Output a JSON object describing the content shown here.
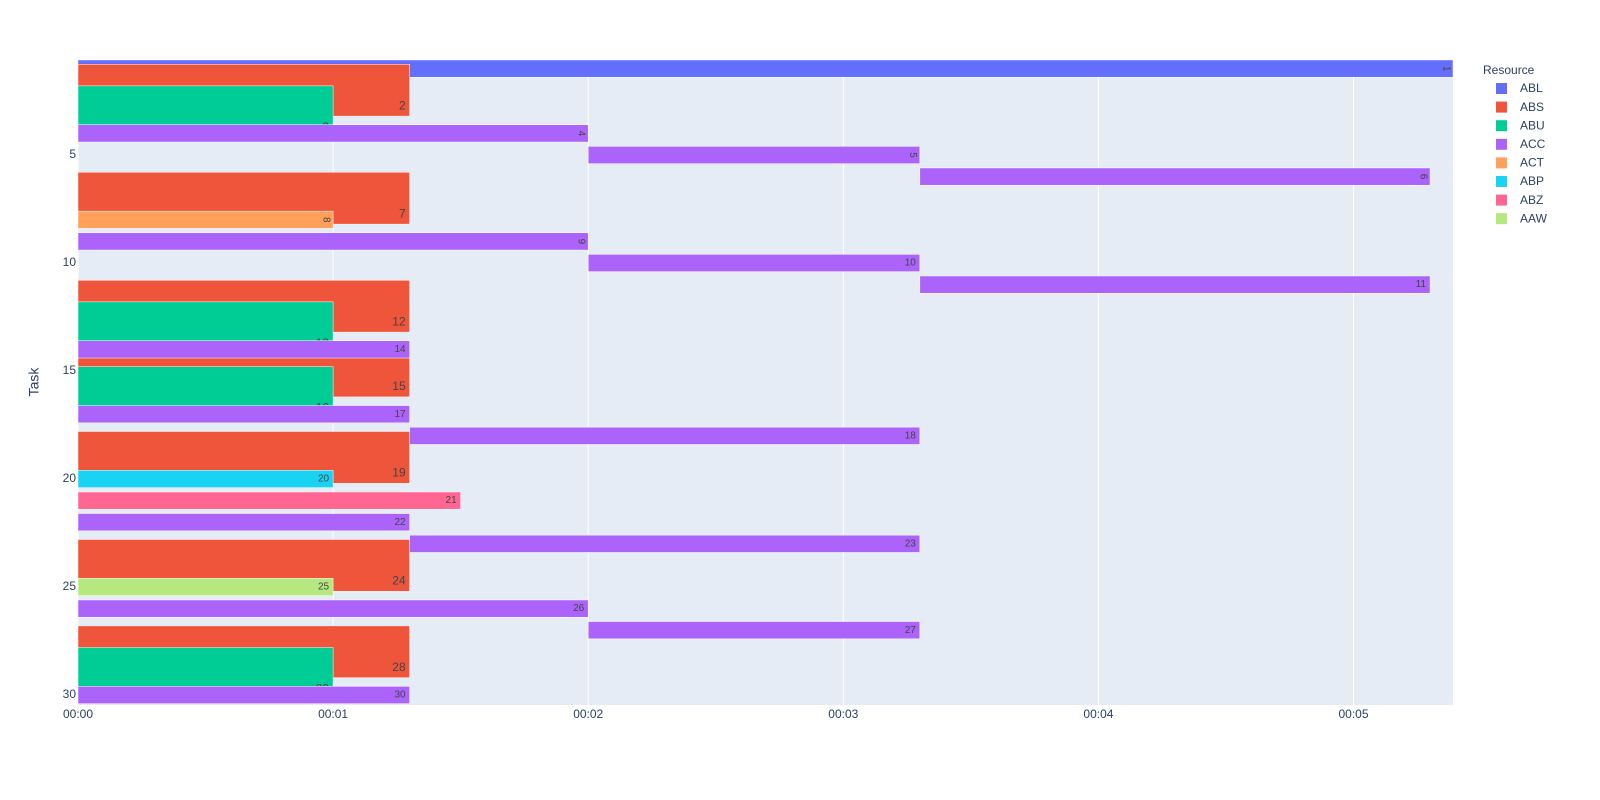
{
  "chart_data": {
    "type": "timeline",
    "y_title": "Task",
    "legend_title": "Resource",
    "xlim": [
      0,
      5.39
    ],
    "ylim": [
      0.5,
      30.5
    ],
    "y_reversed": true,
    "xticks": [
      {
        "value": 0,
        "label": "00:00"
      },
      {
        "value": 1,
        "label": "00:01"
      },
      {
        "value": 2,
        "label": "00:02"
      },
      {
        "value": 3,
        "label": "00:03"
      },
      {
        "value": 4,
        "label": "00:04"
      },
      {
        "value": 5,
        "label": "00:05"
      }
    ],
    "yticks": [
      5,
      10,
      15,
      20,
      25,
      30
    ],
    "grid": true,
    "series": [
      {
        "name": "ABL",
        "color": "#636efa",
        "tasks": [
          1
        ],
        "start": [
          0
        ],
        "end": [
          5.39
        ]
      },
      {
        "name": "ABS",
        "color": "#ef553b",
        "tasks": [
          2,
          7,
          12,
          15,
          19,
          24,
          28
        ],
        "start": [
          0,
          0,
          0,
          0,
          0,
          0,
          0
        ],
        "end": [
          1.3,
          1.3,
          1.3,
          1.3,
          1.3,
          1.3,
          1.3
        ]
      },
      {
        "name": "ABU",
        "color": "#00cc96",
        "tasks": [
          3,
          13,
          16,
          29
        ],
        "start": [
          0,
          0,
          0,
          0
        ],
        "end": [
          1,
          1,
          1,
          1
        ]
      },
      {
        "name": "ACC",
        "color": "#ab63fa",
        "tasks": [
          4,
          5,
          6,
          9,
          10,
          11,
          14,
          17,
          18,
          22,
          23,
          26,
          27,
          30
        ],
        "start": [
          0,
          2,
          3.3,
          0,
          2,
          3.3,
          0,
          0,
          1.3,
          0,
          1.3,
          0,
          2,
          0
        ],
        "end": [
          2,
          3.3,
          5.3,
          2,
          3.3,
          5.3,
          1.3,
          1.3,
          3.3,
          1.3,
          3.3,
          2,
          3.3,
          1.3
        ]
      },
      {
        "name": "ACT",
        "color": "#ffa15a",
        "tasks": [
          8
        ],
        "start": [
          0
        ],
        "end": [
          1
        ]
      },
      {
        "name": "ABP",
        "color": "#19d3f3",
        "tasks": [
          20
        ],
        "start": [
          0
        ],
        "end": [
          1
        ]
      },
      {
        "name": "ABZ",
        "color": "#ff6692",
        "tasks": [
          21
        ],
        "start": [
          0
        ],
        "end": [
          1.5
        ]
      },
      {
        "name": "AAW",
        "color": "#b6e880",
        "tasks": [
          25
        ],
        "start": [
          0
        ],
        "end": [
          1
        ]
      }
    ]
  }
}
